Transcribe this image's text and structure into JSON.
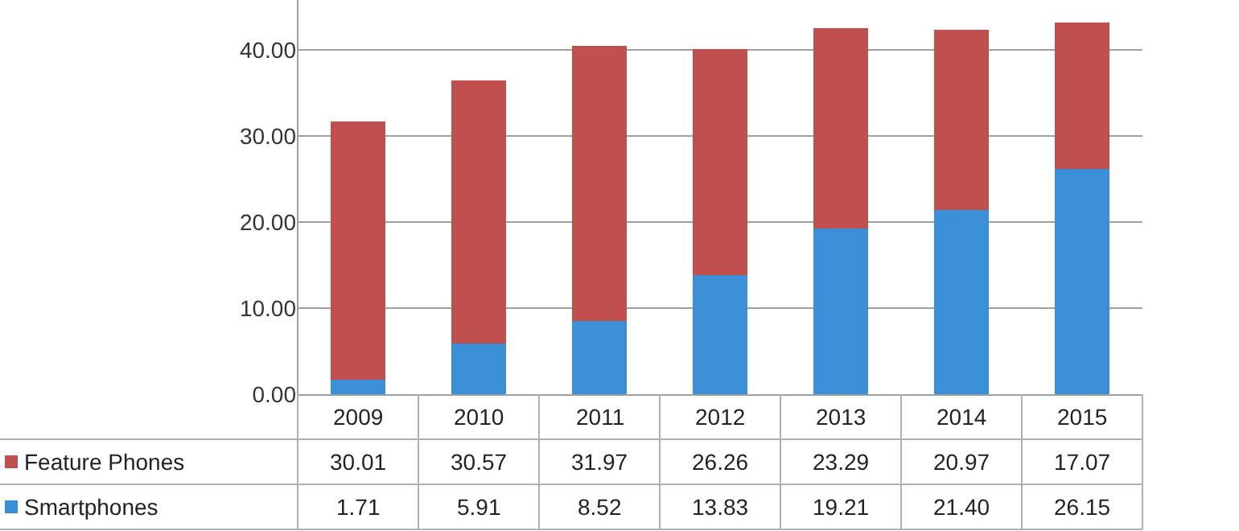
{
  "chart_data": {
    "type": "bar",
    "stacked": true,
    "categories": [
      "2009",
      "2010",
      "2011",
      "2012",
      "2013",
      "2014",
      "2015"
    ],
    "series": [
      {
        "name": "Smartphones",
        "color": "#3b8fd6",
        "values": [
          1.71,
          5.91,
          8.52,
          13.83,
          19.21,
          21.4,
          26.15
        ],
        "value_labels": [
          "1.71",
          "5.91",
          "8.52",
          "13.83",
          "19.21",
          "21.40",
          "26.15"
        ]
      },
      {
        "name": "Feature Phones",
        "color": "#c0504d",
        "values": [
          30.01,
          30.57,
          31.97,
          26.26,
          23.29,
          20.97,
          17.07
        ],
        "value_labels": [
          "30.01",
          "30.57",
          "31.97",
          "26.26",
          "23.29",
          "20.97",
          "17.07"
        ]
      }
    ],
    "ylim": [
      0,
      45.8
    ],
    "yticks": [
      {
        "value": 0,
        "label": "0.00"
      },
      {
        "value": 10,
        "label": "10.00"
      },
      {
        "value": 20,
        "label": "20.00"
      },
      {
        "value": 30,
        "label": "30.00"
      },
      {
        "value": 40,
        "label": "40.00"
      }
    ],
    "grid": "y",
    "legend": "bottom left"
  }
}
